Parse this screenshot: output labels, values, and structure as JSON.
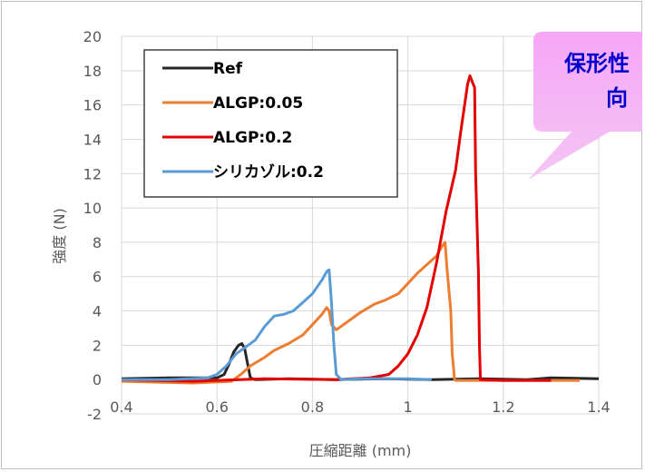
{
  "chart_data": {
    "type": "line",
    "xlabel": "圧縮距離 (mm)",
    "ylabel": "強度 (N)",
    "xlim": [
      0.4,
      1.4
    ],
    "ylim": [
      -2,
      20
    ],
    "xticks": [
      "0.4",
      "0.6",
      "0.8",
      "1",
      "1.2",
      "1.4"
    ],
    "yticks": [
      "-2",
      "0",
      "2",
      "4",
      "6",
      "8",
      "10",
      "12",
      "14",
      "16",
      "18",
      "20"
    ],
    "grid": true,
    "legend_position": "top-left",
    "series": [
      {
        "name": "Ref",
        "color": "#262626",
        "x": [
          0.4,
          0.5,
          0.6,
          0.615,
          0.625,
          0.635,
          0.645,
          0.652,
          0.658,
          0.665,
          0.67,
          0.68,
          0.75,
          0.85,
          0.95,
          1.05,
          1.15,
          1.25,
          1.3,
          1.4
        ],
        "y": [
          0.05,
          0.1,
          0.1,
          0.3,
          0.9,
          1.6,
          2.0,
          2.1,
          1.8,
          0.8,
          0.1,
          0.0,
          0.05,
          0.0,
          0.05,
          0.0,
          0.05,
          0.0,
          0.1,
          0.05
        ]
      },
      {
        "name": "ALGP:0.05",
        "color": "#ed7d31",
        "x": [
          0.4,
          0.55,
          0.63,
          0.65,
          0.67,
          0.7,
          0.72,
          0.75,
          0.78,
          0.8,
          0.82,
          0.83,
          0.835,
          0.84,
          0.85,
          0.87,
          0.9,
          0.93,
          0.95,
          0.98,
          1.0,
          1.02,
          1.04,
          1.06,
          1.07,
          1.078,
          1.082,
          1.09,
          1.093,
          1.098,
          1.1,
          1.2,
          1.3,
          1.36
        ],
        "y": [
          -0.1,
          -0.2,
          -0.1,
          0.3,
          0.8,
          1.3,
          1.7,
          2.1,
          2.6,
          3.2,
          3.8,
          4.2,
          4.0,
          3.2,
          2.9,
          3.3,
          3.9,
          4.4,
          4.6,
          5.0,
          5.6,
          6.2,
          6.7,
          7.2,
          7.7,
          8.0,
          6.5,
          4.0,
          1.5,
          0.0,
          -0.05,
          -0.05,
          -0.05,
          -0.05
        ]
      },
      {
        "name": "ALGP:0.2",
        "color": "#e30000",
        "x": [
          0.4,
          0.55,
          0.7,
          0.85,
          0.92,
          0.96,
          0.98,
          1.0,
          1.02,
          1.04,
          1.06,
          1.08,
          1.1,
          1.11,
          1.12,
          1.125,
          1.13,
          1.14,
          1.142,
          1.148,
          1.15,
          1.152,
          1.2,
          1.3
        ],
        "y": [
          0.0,
          -0.1,
          0.05,
          0.0,
          0.1,
          0.3,
          0.8,
          1.5,
          2.6,
          4.2,
          6.8,
          9.8,
          12.2,
          14.3,
          16.2,
          17.2,
          17.7,
          17.0,
          12.0,
          6.2,
          2.0,
          0.0,
          -0.05,
          -0.05
        ]
      },
      {
        "name": "シリカゾル:0.2",
        "color": "#5b9bd5",
        "x": [
          0.4,
          0.5,
          0.58,
          0.6,
          0.62,
          0.64,
          0.66,
          0.68,
          0.7,
          0.72,
          0.74,
          0.76,
          0.78,
          0.8,
          0.82,
          0.83,
          0.835,
          0.84,
          0.845,
          0.85,
          0.86,
          0.9,
          0.95,
          1.0,
          1.05
        ],
        "y": [
          0.0,
          0.0,
          0.1,
          0.3,
          0.8,
          1.5,
          1.9,
          2.3,
          3.1,
          3.7,
          3.8,
          4.0,
          4.5,
          5.0,
          5.8,
          6.3,
          6.4,
          4.5,
          2.0,
          0.3,
          0.0,
          0.05,
          0.05,
          0.05,
          0.0
        ]
      }
    ],
    "annotation": "保形性\n向"
  }
}
